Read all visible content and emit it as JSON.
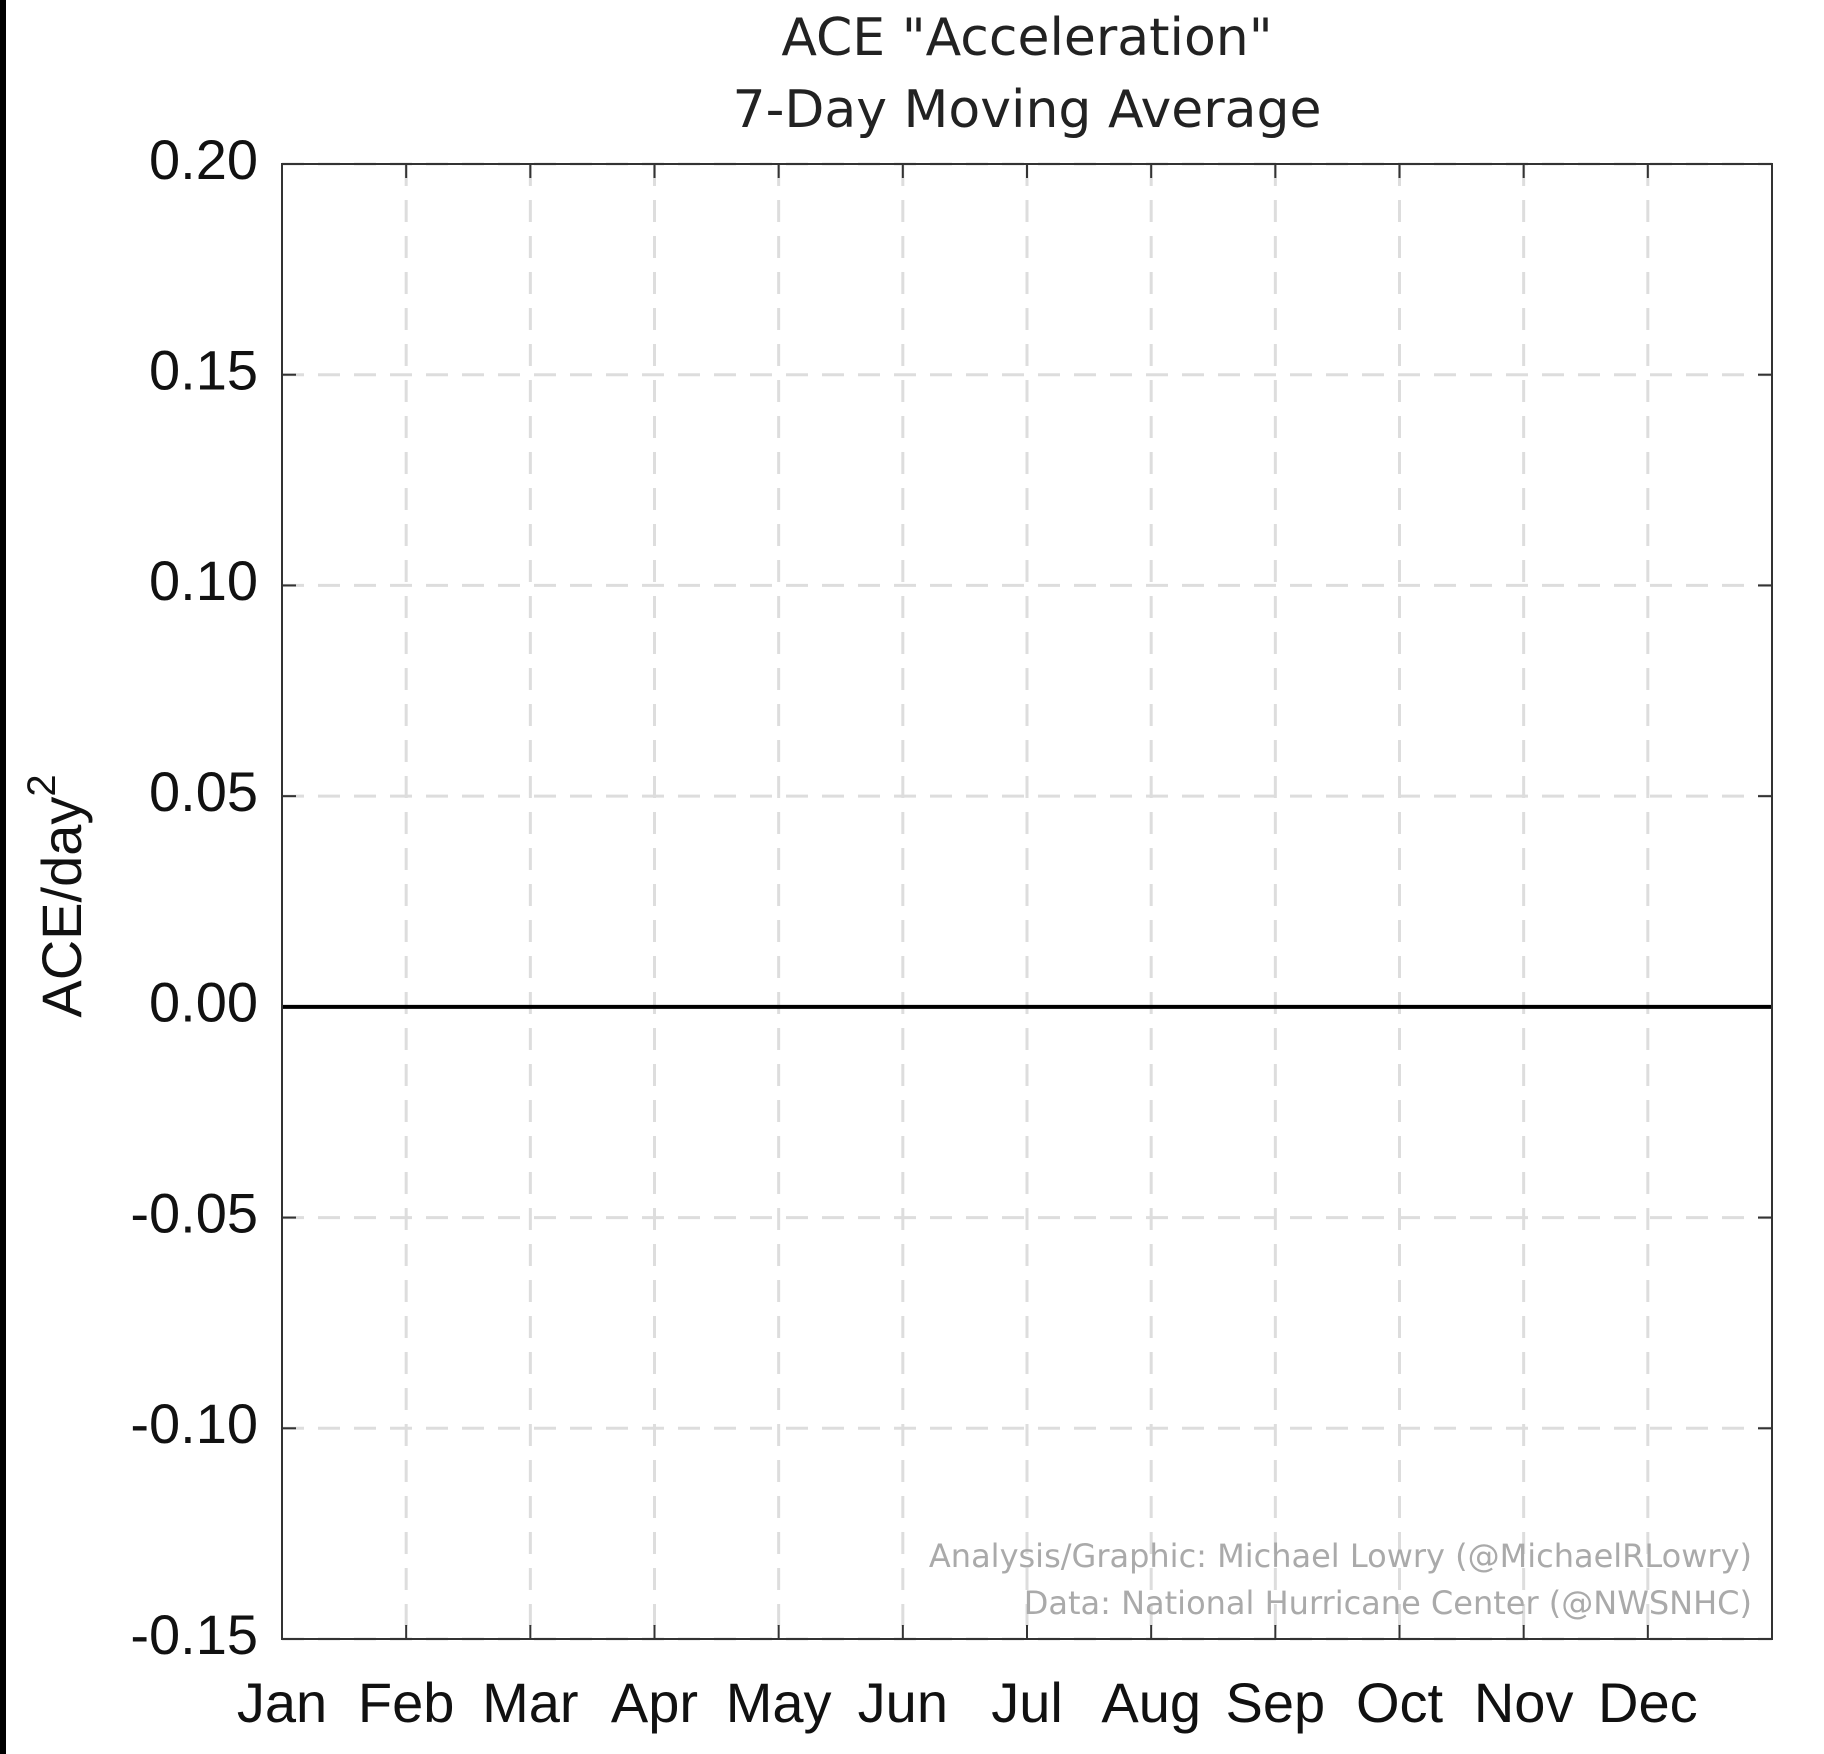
{
  "chart_data": {
    "type": "line",
    "title": "ACE \"Acceleration\"",
    "subtitle": "7-Day Moving Average",
    "ylabel": "ACE/day",
    "ylabel_superscript": "2",
    "categories": [
      "Jan",
      "Feb",
      "Mar",
      "Apr",
      "May",
      "Jun",
      "Jul",
      "Aug",
      "Sep",
      "Oct",
      "Nov",
      "Dec"
    ],
    "series": [],
    "ylim": [
      -0.15,
      0.2
    ],
    "yticks": [
      -0.15,
      {
        "value": -0.1,
        "label": "-0.10"
      },
      -0.05,
      {
        "value": 0,
        "label": "0.00"
      },
      0.05,
      {
        "value": 0.1,
        "label": "0.10"
      },
      0.15,
      {
        "value": 0.2,
        "label": "0.20"
      }
    ],
    "reference_line": 0,
    "grid": true,
    "annotations": [
      "Analysis/Graphic: Michael Lowry (@MichaelRLowry)",
      "Data: National Hurricane Center (@NWSNHC)"
    ]
  }
}
